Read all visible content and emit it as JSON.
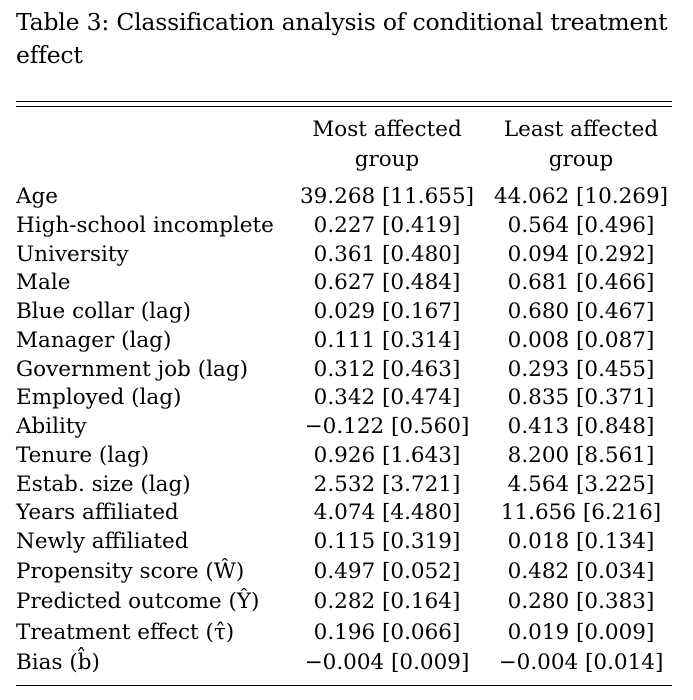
{
  "caption": "Table 3: Classification analysis of conditional treatment effect",
  "columns": {
    "most_affected": [
      "Most affected",
      "group"
    ],
    "least_affected": [
      "Least affected",
      "group"
    ]
  },
  "rows": [
    {
      "label": "Age",
      "most": "39.268 [11.655]",
      "least": "44.062 [10.269]"
    },
    {
      "label": "High-school incomplete",
      "most": "0.227 [0.419]",
      "least": "0.564 [0.496]"
    },
    {
      "label": "University",
      "most": "0.361 [0.480]",
      "least": "0.094 [0.292]"
    },
    {
      "label": "Male",
      "most": "0.627 [0.484]",
      "least": "0.681 [0.466]"
    },
    {
      "label": "Blue collar (lag)",
      "most": "0.029 [0.167]",
      "least": "0.680 [0.467]"
    },
    {
      "label": "Manager (lag)",
      "most": "0.111 [0.314]",
      "least": "0.008 [0.087]"
    },
    {
      "label": "Government job (lag)",
      "most": "0.312 [0.463]",
      "least": "0.293 [0.455]"
    },
    {
      "label": "Employed (lag)",
      "most": "0.342 [0.474]",
      "least": "0.835 [0.371]"
    },
    {
      "label": "Ability",
      "most": "−0.122 [0.560]",
      "least": "0.413 [0.848]"
    },
    {
      "label": "Tenure (lag)",
      "most": "0.926 [1.643]",
      "least": "8.200 [8.561]"
    },
    {
      "label": "Estab. size (lag)",
      "most": "2.532 [3.721]",
      "least": "4.564 [3.225]"
    },
    {
      "label": "Years affiliated",
      "most": "4.074 [4.480]",
      "least": "11.656 [6.216]"
    },
    {
      "label": "Newly affiliated",
      "most": "0.115 [0.319]",
      "least": "0.018 [0.134]"
    },
    {
      "label": "Propensity score (Ŵ)",
      "most": "0.497 [0.052]",
      "least": "0.482 [0.034]"
    },
    {
      "label": "Predicted outcome (Ŷ)",
      "most": "0.282 [0.164]",
      "least": "0.280 [0.383]"
    },
    {
      "label": "Treatment effect (τ̂)",
      "most": "0.196 [0.066]",
      "least": "0.019 [0.009]"
    },
    {
      "label": "Bias (b̂)",
      "most": "−0.004 [0.009]",
      "least": "−0.004 [0.014]"
    }
  ]
}
